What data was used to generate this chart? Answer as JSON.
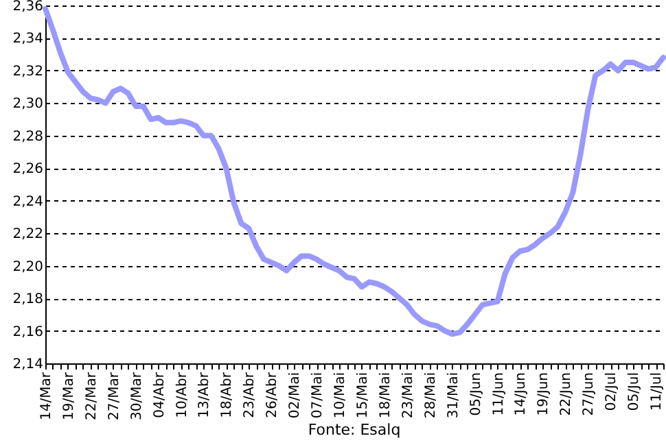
{
  "chart_data": {
    "type": "line",
    "categories": [
      "14/Mar",
      null,
      null,
      "19/Mar",
      null,
      null,
      "22/Mar",
      null,
      null,
      "27/Mar",
      null,
      null,
      "30/Mar",
      null,
      null,
      "04/Abr",
      null,
      null,
      "10/Abr",
      null,
      null,
      "13/Abr",
      null,
      null,
      "18/Abr",
      null,
      null,
      "23/Abr",
      null,
      null,
      "26/Abr",
      null,
      null,
      "02/Mai",
      null,
      null,
      "07/Mai",
      null,
      null,
      "10/Mai",
      null,
      null,
      "15/Mai",
      null,
      null,
      "18/Mai",
      null,
      null,
      "23/Mai",
      null,
      null,
      "28/Mai",
      null,
      null,
      "31/Mai",
      null,
      null,
      "05/Jun",
      null,
      null,
      "11/Jun",
      null,
      null,
      "14/Jun",
      null,
      null,
      "19/Jun",
      null,
      null,
      "22/Jun",
      null,
      null,
      "27/Jun",
      null,
      null,
      "02/Jul",
      null,
      null,
      "05/Jul",
      null,
      null,
      "11/Jul",
      null
    ],
    "series": [
      {
        "color": "#9999ff",
        "values": [
          2.358,
          2.345,
          2.331,
          2.319,
          2.313,
          2.307,
          2.303,
          2.302,
          2.3,
          2.307,
          2.309,
          2.306,
          2.298,
          2.298,
          2.29,
          2.291,
          2.288,
          2.288,
          2.289,
          2.288,
          2.286,
          2.28,
          2.28,
          2.272,
          2.26,
          2.239,
          2.226,
          2.223,
          2.212,
          2.204,
          2.202,
          2.2,
          2.197,
          2.202,
          2.206,
          2.206,
          2.204,
          2.201,
          2.199,
          2.197,
          2.193,
          2.192,
          2.187,
          2.19,
          2.189,
          2.187,
          2.184,
          2.18,
          2.176,
          2.17,
          2.166,
          2.164,
          2.163,
          2.16,
          2.158,
          2.159,
          2.164,
          2.17,
          2.176,
          2.177,
          2.178,
          2.195,
          2.205,
          2.209,
          2.21,
          2.213,
          2.217,
          2.22,
          2.224,
          2.233,
          2.245,
          2.268,
          2.296,
          2.317,
          2.32,
          2.324,
          2.32,
          2.325,
          2.325,
          2.323,
          2.321,
          2.322,
          2.328
        ]
      }
    ],
    "ylim": [
      2.14,
      2.36
    ],
    "yticks": [
      {
        "value": 2.14,
        "label": "2,14"
      },
      {
        "value": 2.16,
        "label": "2,16"
      },
      {
        "value": 2.18,
        "label": "2,18"
      },
      {
        "value": 2.2,
        "label": "2,20"
      },
      {
        "value": 2.22,
        "label": "2,22"
      },
      {
        "value": 2.24,
        "label": "2,24"
      },
      {
        "value": 2.26,
        "label": "2,26"
      },
      {
        "value": 2.28,
        "label": "2,28"
      },
      {
        "value": 2.3,
        "label": "2,30"
      },
      {
        "value": 2.32,
        "label": "2,32"
      },
      {
        "value": 2.34,
        "label": "2,34"
      },
      {
        "value": 2.36,
        "label": "2,36"
      }
    ],
    "grid": "y",
    "line_style": "solid",
    "marker": "none",
    "annotations": [
      "Fonte: Esalq"
    ]
  }
}
